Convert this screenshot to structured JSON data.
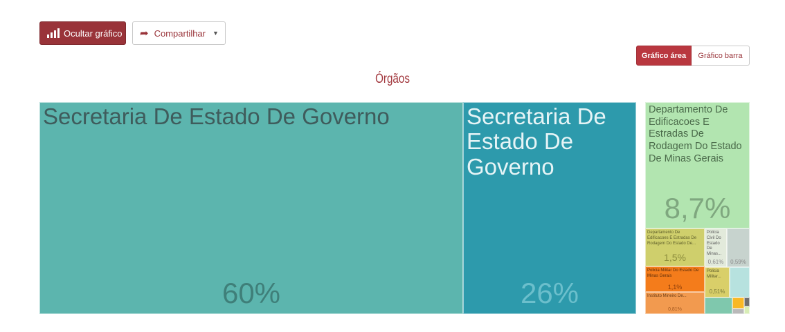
{
  "toolbar": {
    "hide_chart_label": "Ocultar gráfico",
    "share_label": "Compartilhar"
  },
  "view_toggle": {
    "area_label": "Gráfico área",
    "bar_label": "Gráfico barra",
    "selected": "Gráfico área"
  },
  "chart_data": {
    "type": "treemap",
    "title": "Órgãos",
    "cells": [
      {
        "label": "Secretaria De Estado De Governo",
        "percent": "60%",
        "color": "#5cb5ae"
      },
      {
        "label": "Secretaria De Estado De Governo",
        "percent": "26%",
        "color": "#2d9aac"
      },
      {
        "label": "Departamento De Edificacoes E Estradas De Rodagem Do Estado De Minas Gerais",
        "percent": "8,7%",
        "color": "#b2e5b0"
      },
      {
        "label": "Departamento De Edificacoes E Estradas De Rodagem Do Estado De...",
        "percent": "1,5%",
        "color": "#cfcf6c"
      },
      {
        "label": "Policia Civil Do Estado De Minas...",
        "percent": "0,61%",
        "color": "#e2eadb"
      },
      {
        "label": "",
        "percent": "0,59%",
        "color": "#c7d3ce"
      },
      {
        "label": "Policia Militar Do Estado De Minas Gerais",
        "percent": "1,1%",
        "color": "#f47c1b"
      },
      {
        "label": "Policia Militar...",
        "percent": "0,51%",
        "color": "#d9cf69"
      },
      {
        "label": "Instituto Mineiro De...",
        "percent": "0,81%",
        "color": "#f29a4f"
      }
    ],
    "small_cells": [
      {
        "color": "#b7e2df"
      },
      {
        "color": "#7fc8ad"
      },
      {
        "color": "#f9b826"
      },
      {
        "color": "#6f6f6f"
      },
      {
        "color": "#b9b9b9"
      },
      {
        "color": "#d8edb6"
      }
    ]
  }
}
